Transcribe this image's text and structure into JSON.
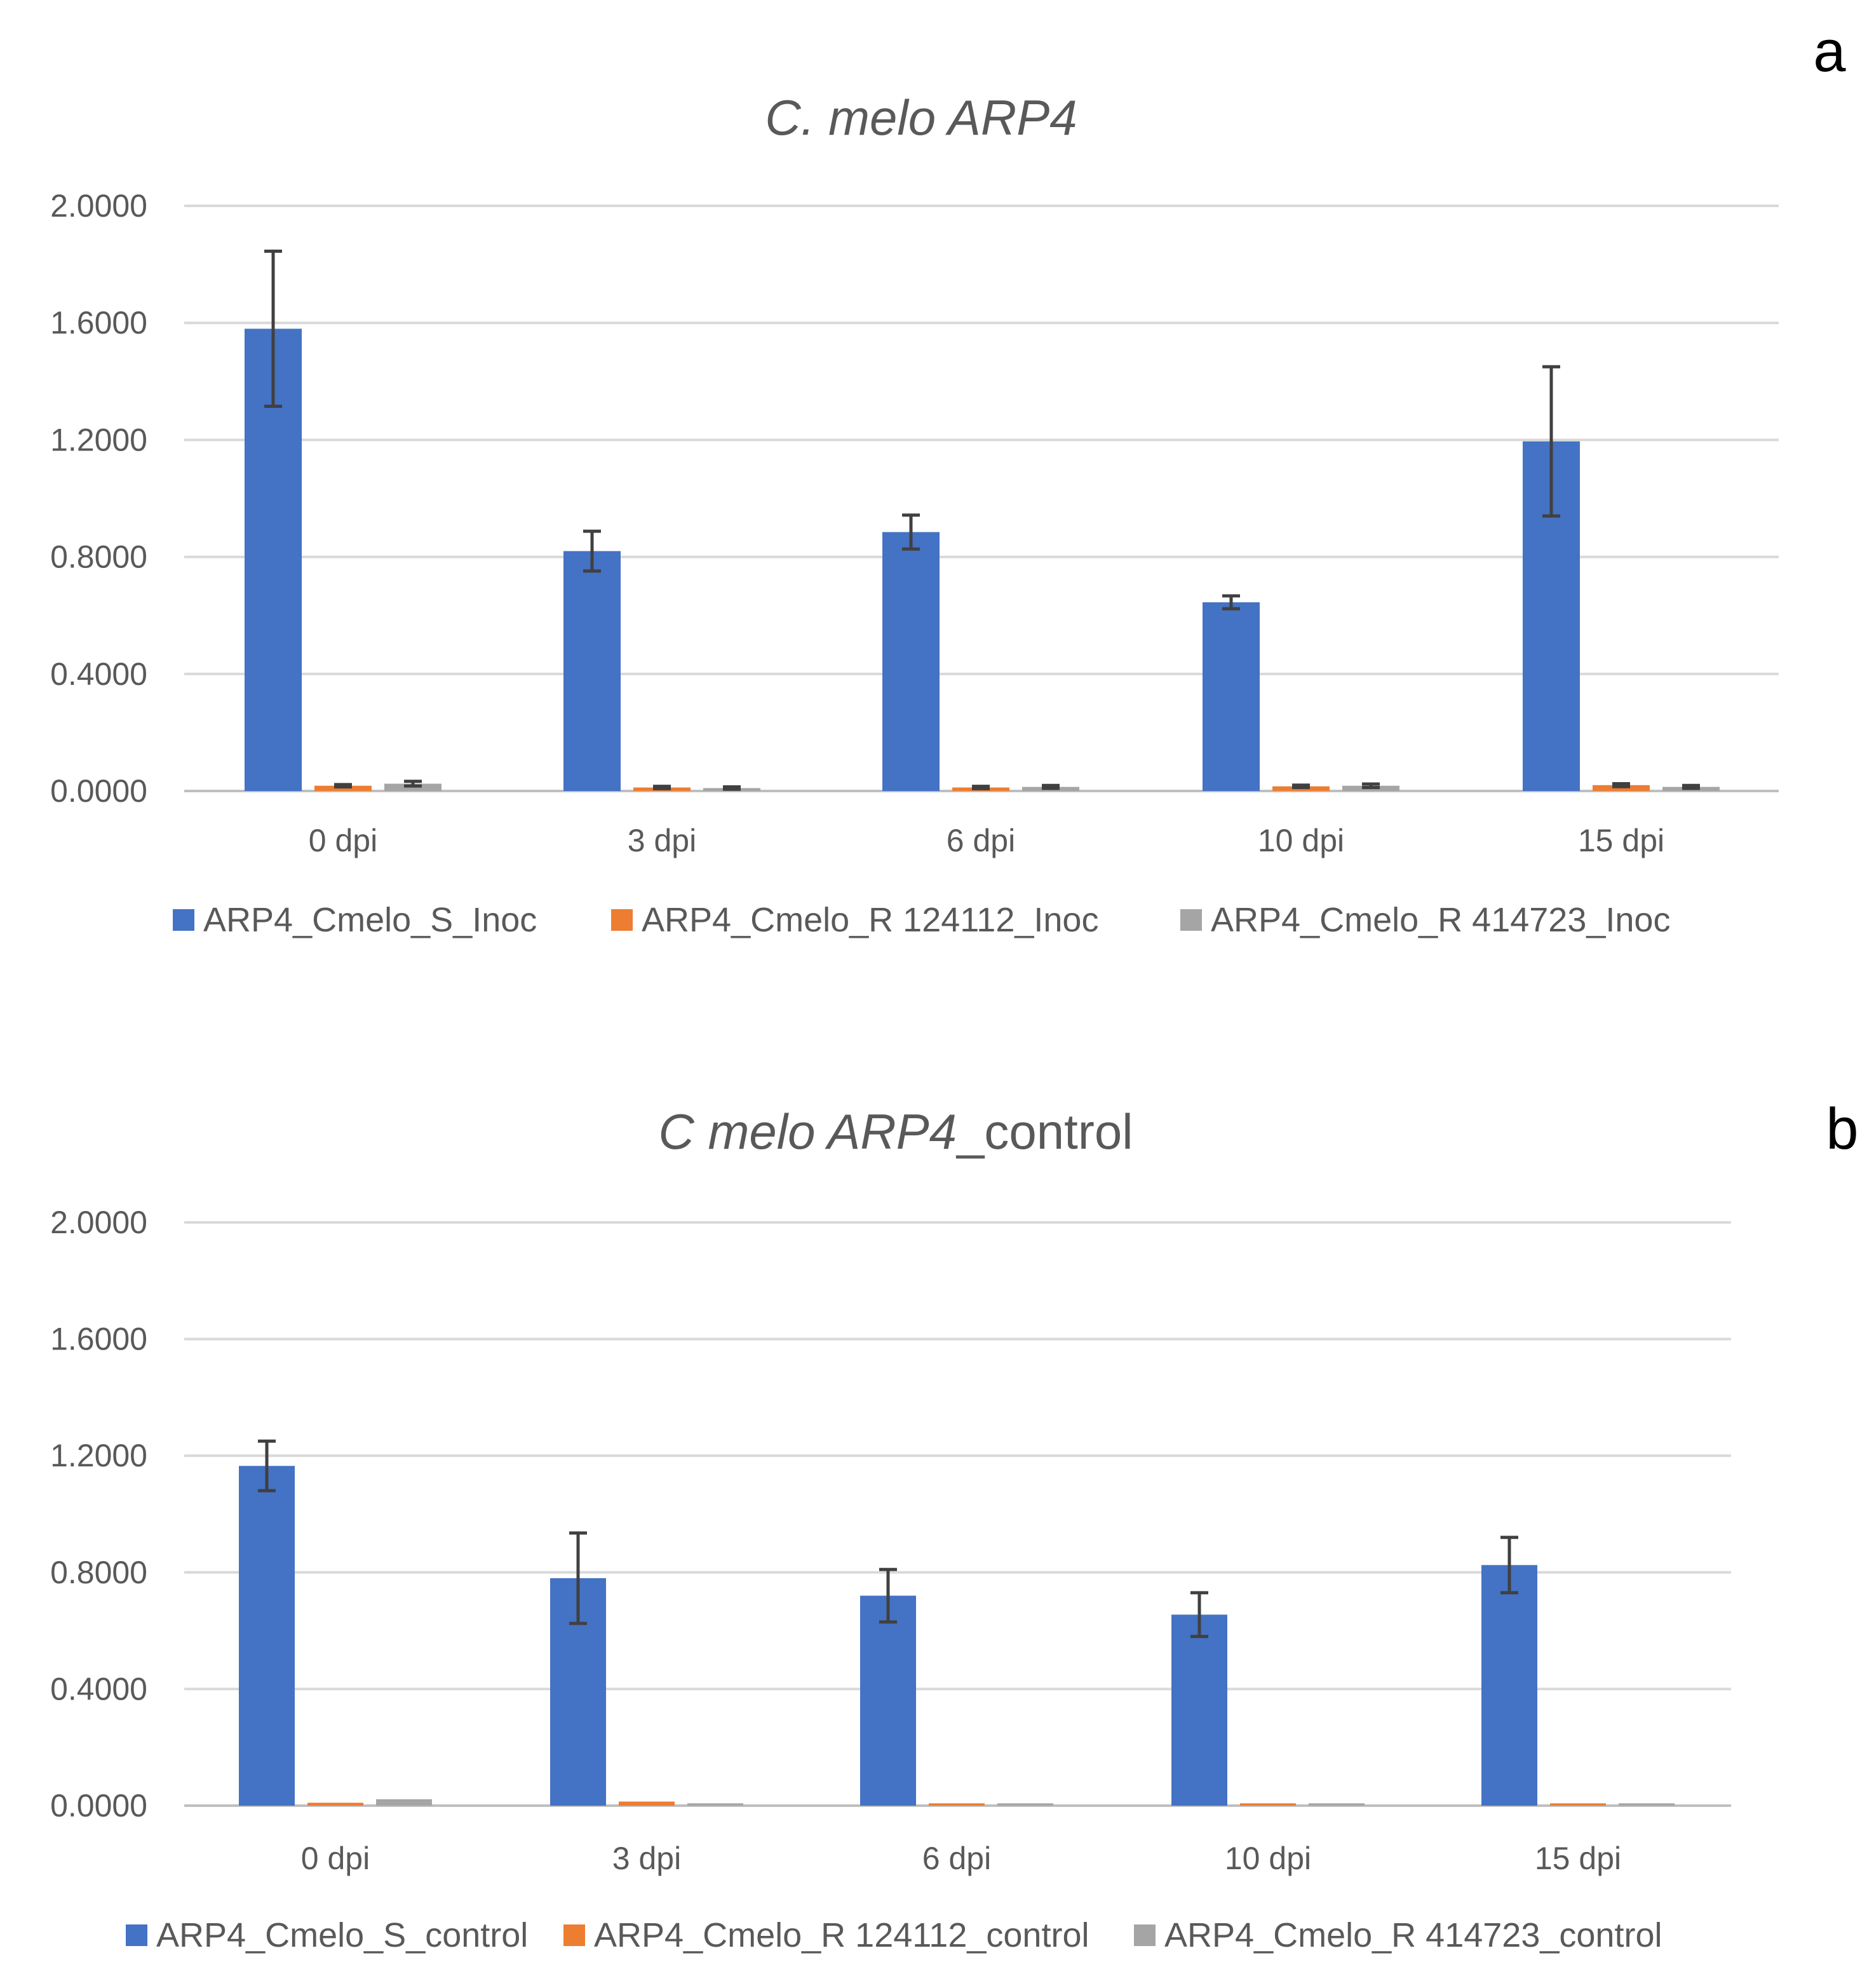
{
  "colors": {
    "S": "#4472c4",
    "R124112": "#ed7d31",
    "R414723": "#a5a5a5",
    "error": "#404040",
    "grid": "#d9d9d9",
    "text": "#595959"
  },
  "chart_data": [
    {
      "type": "bar",
      "panel": "a",
      "title_parts": [
        {
          "text": "C. melo ARP4",
          "italic": true
        }
      ],
      "categories": [
        "0 dpi",
        "3 dpi",
        "6 dpi",
        "10 dpi",
        "15 dpi"
      ],
      "yticks": [
        "0.0000",
        "0.4000",
        "0.8000",
        "1.2000",
        "1.6000",
        "2.0000"
      ],
      "ylim": [
        0,
        2
      ],
      "legend_position": "bottom",
      "series": [
        {
          "name": "ARP4_Cmelo_S_Inoc",
          "color_key": "S",
          "values": [
            1.58,
            0.82,
            0.885,
            0.645,
            1.195
          ],
          "errors": [
            0.265,
            0.068,
            0.058,
            0.022,
            0.255
          ]
        },
        {
          "name": "ARP4_Cmelo_R 124112_Inoc",
          "color_key": "R124112",
          "values": [
            0.018,
            0.012,
            0.012,
            0.016,
            0.02
          ],
          "errors": [
            0.004,
            0.004,
            0.004,
            0.004,
            0.005
          ]
        },
        {
          "name": "ARP4_Cmelo_R 414723_Inoc",
          "color_key": "R414723",
          "values": [
            0.025,
            0.01,
            0.014,
            0.018,
            0.014
          ],
          "errors": [
            0.008,
            0.004,
            0.005,
            0.006,
            0.005
          ]
        }
      ]
    },
    {
      "type": "bar",
      "panel": "b",
      "title_parts": [
        {
          "text": "C melo ARP4",
          "italic": true
        },
        {
          "text": "_control",
          "italic": false
        }
      ],
      "categories": [
        "0 dpi",
        "3 dpi",
        "6 dpi",
        "10 dpi",
        "15 dpi"
      ],
      "yticks": [
        "0.0000",
        "0.4000",
        "0.8000",
        "1.2000",
        "1.6000",
        "2.0000"
      ],
      "ylim": [
        0,
        2
      ],
      "legend_position": "bottom",
      "series": [
        {
          "name": "ARP4_Cmelo_S_control",
          "color_key": "S",
          "values": [
            1.165,
            0.78,
            0.72,
            0.655,
            0.825
          ],
          "errors": [
            0.085,
            0.155,
            0.09,
            0.075,
            0.095
          ]
        },
        {
          "name": "ARP4_Cmelo_R 124112_control",
          "color_key": "R124112",
          "values": [
            0.01,
            0.014,
            0.008,
            0.008,
            0.008
          ],
          "errors": [
            0,
            0,
            0,
            0,
            0
          ]
        },
        {
          "name": "ARP4_Cmelo_R 414723_control",
          "color_key": "R414723",
          "values": [
            0.022,
            0.008,
            0.008,
            0.008,
            0.008
          ],
          "errors": [
            0,
            0,
            0,
            0,
            0
          ]
        }
      ]
    }
  ]
}
